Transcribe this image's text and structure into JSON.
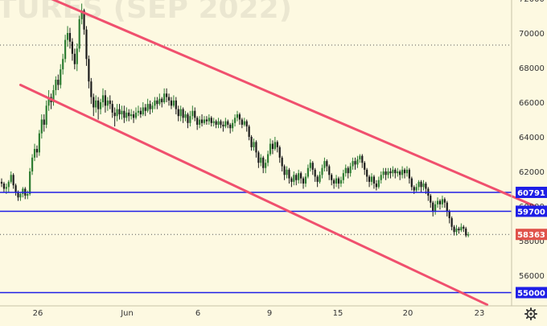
{
  "chart_data": {
    "type": "candlestick",
    "watermark": "TURES (SEP 2022)",
    "colors": {
      "background": "#FDF9E1",
      "up": "#2E7D32",
      "down": "#1B1B1B",
      "channel": "#F0506E",
      "level": "#1E1EE6",
      "last_price_badge": "#E0524A",
      "dotted_reference": "#555555",
      "axis_text": "#333333"
    },
    "y_axis": {
      "ticks": [
        "72000",
        "70000",
        "68000",
        "66000",
        "64000",
        "62000",
        "60000",
        "58000",
        "56000"
      ],
      "range": [
        54500,
        72200
      ]
    },
    "x_axis": {
      "ticks": [
        "26",
        "Jun",
        "6",
        "9",
        "15",
        "20",
        "23"
      ]
    },
    "horizontal_levels": [
      {
        "label": "60791",
        "value": 60791,
        "style": "solid"
      },
      {
        "label": "59700",
        "value": 59700,
        "style": "solid"
      },
      {
        "label": "55000",
        "value": 55000,
        "style": "solid"
      }
    ],
    "dotted_reference_line": {
      "value": 69300
    },
    "last_price": {
      "label": "58363",
      "value": 58363
    },
    "channel_lines": [
      {
        "from": {
          "bar": 19,
          "price": 72100
        },
        "to": {
          "bar": 233,
          "price": 59600
        }
      },
      {
        "from": {
          "bar": 8,
          "price": 67000
        },
        "to": {
          "bar": 206,
          "price": 54300
        }
      }
    ],
    "candles": [
      [
        61400,
        61300,
        61600,
        61100
      ],
      [
        61300,
        61000,
        61400,
        60800
      ],
      [
        61000,
        61100,
        61300,
        60700
      ],
      [
        61100,
        61400,
        61500,
        60800
      ],
      [
        61400,
        61800,
        62000,
        61300
      ],
      [
        61800,
        61200,
        61900,
        61000
      ],
      [
        61200,
        60800,
        61300,
        60600
      ],
      [
        60800,
        60500,
        60900,
        60300
      ],
      [
        60500,
        60700,
        60800,
        60300
      ],
      [
        60700,
        61000,
        61100,
        60500
      ],
      [
        61000,
        60600,
        61100,
        60400
      ],
      [
        60600,
        60700,
        60900,
        60400
      ],
      [
        60700,
        62000,
        62200,
        60600
      ],
      [
        62000,
        62800,
        63000,
        61800
      ],
      [
        62800,
        63300,
        63600,
        62600
      ],
      [
        63300,
        63100,
        63500,
        62800
      ],
      [
        63100,
        64200,
        64400,
        62900
      ],
      [
        64200,
        65000,
        65300,
        63900
      ],
      [
        65000,
        64700,
        65300,
        64300
      ],
      [
        64700,
        65800,
        66100,
        64500
      ],
      [
        65800,
        66300,
        66700,
        65500
      ],
      [
        66300,
        66000,
        66500,
        65600
      ],
      [
        66000,
        66700,
        67000,
        65800
      ],
      [
        66700,
        67300,
        67500,
        66400
      ],
      [
        67300,
        67000,
        67600,
        66700
      ],
      [
        67000,
        67900,
        68200,
        66800
      ],
      [
        67900,
        68500,
        68800,
        67600
      ],
      [
        68500,
        69600,
        69900,
        68300
      ],
      [
        69600,
        70000,
        70400,
        69200
      ],
      [
        70000,
        69500,
        70300,
        69100
      ],
      [
        69500,
        68800,
        69700,
        68400
      ],
      [
        68800,
        68200,
        69100,
        67900
      ],
      [
        68200,
        69100,
        69400,
        67800
      ],
      [
        69100,
        70800,
        71000,
        68900
      ],
      [
        70800,
        71300,
        71700,
        70500
      ],
      [
        71300,
        70200,
        71400,
        69900
      ],
      [
        70200,
        68500,
        70400,
        68100
      ],
      [
        68500,
        67200,
        68700,
        66800
      ],
      [
        67200,
        66300,
        67400,
        65900
      ],
      [
        66300,
        65700,
        66500,
        65200
      ],
      [
        65700,
        66100,
        66400,
        65400
      ],
      [
        66100,
        65600,
        66300,
        65000
      ],
      [
        65600,
        66000,
        66200,
        65300
      ],
      [
        66000,
        66400,
        66800,
        65700
      ],
      [
        66400,
        65800,
        66700,
        65400
      ],
      [
        65800,
        66100,
        66300,
        65500
      ],
      [
        66100,
        65900,
        66400,
        65600
      ],
      [
        65900,
        65400,
        66100,
        65100
      ],
      [
        65400,
        65200,
        65700,
        64600
      ],
      [
        65200,
        65600,
        65900,
        64900
      ],
      [
        65600,
        65300,
        65900,
        65000
      ],
      [
        65300,
        65500,
        65800,
        65000
      ],
      [
        65500,
        65100,
        65800,
        64800
      ],
      [
        65100,
        65400,
        65700,
        64900
      ],
      [
        65400,
        65200,
        65600,
        64900
      ],
      [
        65200,
        65300,
        65600,
        65000
      ],
      [
        65300,
        65100,
        65500,
        64800
      ],
      [
        65100,
        65400,
        65700,
        65000
      ],
      [
        65400,
        65500,
        65800,
        65200
      ],
      [
        65500,
        65300,
        65700,
        65100
      ],
      [
        65300,
        65700,
        66000,
        65200
      ],
      [
        65700,
        65500,
        65900,
        65200
      ],
      [
        65500,
        65900,
        66200,
        65400
      ],
      [
        65900,
        65600,
        66100,
        65300
      ],
      [
        65600,
        65800,
        66000,
        65400
      ],
      [
        65800,
        66100,
        66300,
        65600
      ],
      [
        66100,
        65900,
        66300,
        65600
      ],
      [
        65900,
        66200,
        66500,
        65800
      ],
      [
        66200,
        66000,
        66300,
        65700
      ],
      [
        66000,
        66500,
        66800,
        65900
      ],
      [
        66500,
        66300,
        66800,
        66000
      ],
      [
        66300,
        66100,
        66500,
        65800
      ],
      [
        66100,
        65800,
        66300,
        65600
      ],
      [
        65800,
        66100,
        66400,
        65700
      ],
      [
        66100,
        65600,
        66300,
        65300
      ],
      [
        65600,
        65200,
        65800,
        64900
      ],
      [
        65200,
        65600,
        65800,
        64900
      ],
      [
        65600,
        65100,
        65700,
        64800
      ],
      [
        65100,
        65300,
        65500,
        64900
      ],
      [
        65300,
        64800,
        65400,
        64500
      ],
      [
        64800,
        65200,
        65500,
        64600
      ],
      [
        65200,
        65500,
        65800,
        65000
      ],
      [
        65500,
        65100,
        65700,
        64900
      ],
      [
        65100,
        64700,
        65200,
        64400
      ],
      [
        64700,
        65000,
        65200,
        64500
      ],
      [
        65000,
        64800,
        65300,
        64600
      ],
      [
        64800,
        65000,
        65200,
        64700
      ],
      [
        65000,
        64900,
        65200,
        64700
      ],
      [
        64900,
        65100,
        65300,
        64700
      ],
      [
        65100,
        64800,
        65200,
        64600
      ],
      [
        64800,
        64900,
        65100,
        64600
      ],
      [
        64900,
        64700,
        65000,
        64500
      ],
      [
        64700,
        64900,
        65100,
        64500
      ],
      [
        64900,
        64700,
        65000,
        64500
      ],
      [
        64700,
        64600,
        64900,
        64300
      ],
      [
        64600,
        64900,
        65100,
        64500
      ],
      [
        64900,
        64700,
        65000,
        64500
      ],
      [
        64700,
        64500,
        64800,
        64200
      ],
      [
        64500,
        64800,
        65000,
        64300
      ],
      [
        64800,
        65100,
        65300,
        64600
      ],
      [
        65100,
        65300,
        65500,
        64900
      ],
      [
        65300,
        65000,
        65400,
        64700
      ],
      [
        65000,
        64700,
        65100,
        64500
      ],
      [
        64700,
        64900,
        65100,
        64600
      ],
      [
        64900,
        64600,
        65000,
        64300
      ],
      [
        64600,
        64000,
        64700,
        63800
      ],
      [
        64000,
        63400,
        64100,
        63200
      ],
      [
        63400,
        63700,
        63900,
        63200
      ],
      [
        63700,
        63100,
        63800,
        62800
      ],
      [
        63100,
        62500,
        63200,
        62200
      ],
      [
        62500,
        62800,
        63000,
        62300
      ],
      [
        62800,
        62200,
        62900,
        61900
      ],
      [
        62200,
        62500,
        62700,
        61900
      ],
      [
        62500,
        63000,
        63200,
        62300
      ],
      [
        63000,
        63600,
        63900,
        62900
      ],
      [
        63600,
        63300,
        63800,
        63000
      ],
      [
        63300,
        63700,
        64000,
        63200
      ],
      [
        63700,
        63400,
        63800,
        63100
      ],
      [
        63400,
        62800,
        63500,
        62500
      ],
      [
        62800,
        62300,
        62900,
        62000
      ],
      [
        62300,
        61800,
        62400,
        61500
      ],
      [
        61800,
        62100,
        62300,
        61600
      ],
      [
        62100,
        61600,
        62200,
        61300
      ],
      [
        61600,
        61400,
        61700,
        61100
      ],
      [
        61400,
        61800,
        62000,
        61200
      ],
      [
        61800,
        61500,
        61900,
        61200
      ],
      [
        61500,
        61900,
        62100,
        61300
      ],
      [
        61900,
        61600,
        62000,
        61300
      ],
      [
        61600,
        61300,
        61700,
        61000
      ],
      [
        61300,
        61700,
        61900,
        61100
      ],
      [
        61700,
        62200,
        62400,
        61600
      ],
      [
        62200,
        62500,
        62700,
        62000
      ],
      [
        62500,
        62100,
        62600,
        61800
      ],
      [
        62100,
        61700,
        62200,
        61400
      ],
      [
        61700,
        61400,
        61800,
        61100
      ],
      [
        61400,
        61800,
        62000,
        61300
      ],
      [
        61800,
        62200,
        62400,
        61600
      ],
      [
        62200,
        62600,
        62800,
        62000
      ],
      [
        62600,
        62300,
        62700,
        62000
      ],
      [
        62300,
        61800,
        62400,
        61500
      ],
      [
        61800,
        61500,
        61900,
        61200
      ],
      [
        61500,
        61300,
        61600,
        61000
      ],
      [
        61300,
        61600,
        61800,
        61100
      ],
      [
        61600,
        61300,
        61700,
        61000
      ],
      [
        61300,
        61500,
        61700,
        61100
      ],
      [
        61500,
        61900,
        62100,
        61300
      ],
      [
        61900,
        62200,
        62400,
        61700
      ],
      [
        62200,
        61900,
        62300,
        61600
      ],
      [
        61900,
        62300,
        62500,
        61700
      ],
      [
        62300,
        62600,
        62800,
        62100
      ],
      [
        62600,
        62400,
        62800,
        62100
      ],
      [
        62400,
        62700,
        62900,
        62200
      ],
      [
        62700,
        62900,
        63000,
        62500
      ],
      [
        62900,
        62500,
        63000,
        62200
      ],
      [
        62500,
        62100,
        62600,
        61800
      ],
      [
        62100,
        61700,
        62200,
        61400
      ],
      [
        61700,
        61400,
        61800,
        61100
      ],
      [
        61400,
        61700,
        61900,
        61200
      ],
      [
        61700,
        61300,
        61800,
        61000
      ],
      [
        61300,
        61100,
        61500,
        60900
      ],
      [
        61100,
        61500,
        61700,
        61000
      ],
      [
        61500,
        61800,
        62000,
        61300
      ],
      [
        61800,
        62000,
        62200,
        61600
      ],
      [
        62000,
        61800,
        62200,
        61500
      ],
      [
        61800,
        62000,
        62200,
        61600
      ],
      [
        62000,
        61900,
        62200,
        61600
      ],
      [
        61900,
        62100,
        62300,
        61700
      ],
      [
        62100,
        61900,
        62200,
        61600
      ],
      [
        61900,
        62000,
        62200,
        61700
      ],
      [
        62000,
        61800,
        62100,
        61500
      ],
      [
        61800,
        62100,
        62300,
        61600
      ],
      [
        62100,
        61900,
        62200,
        61600
      ],
      [
        61900,
        62100,
        62300,
        61700
      ],
      [
        62100,
        61600,
        62200,
        61300
      ],
      [
        61600,
        61100,
        61700,
        60900
      ],
      [
        61100,
        60900,
        61200,
        60700
      ],
      [
        60900,
        61100,
        61300,
        60800
      ],
      [
        61100,
        61400,
        61500,
        60900
      ],
      [
        61400,
        61100,
        61500,
        60800
      ],
      [
        61100,
        61300,
        61500,
        60900
      ],
      [
        61300,
        61000,
        61400,
        60700
      ],
      [
        61000,
        60600,
        61100,
        60300
      ],
      [
        60600,
        60200,
        60700,
        59900
      ],
      [
        60200,
        59700,
        60300,
        59400
      ],
      [
        59700,
        60100,
        60300,
        59500
      ],
      [
        60100,
        60300,
        60500,
        59900
      ],
      [
        60300,
        60100,
        60400,
        59800
      ],
      [
        60100,
        60400,
        60600,
        59900
      ],
      [
        60400,
        60200,
        60500,
        59900
      ],
      [
        60200,
        59700,
        60300,
        59400
      ],
      [
        59700,
        59300,
        59800,
        59000
      ],
      [
        59300,
        58800,
        59400,
        58600
      ],
      [
        58800,
        58500,
        58900,
        58300
      ],
      [
        58500,
        58700,
        58900,
        58300
      ],
      [
        58700,
        58600,
        58800,
        58400
      ],
      [
        58600,
        58800,
        59000,
        58500
      ],
      [
        58800,
        58700,
        58900,
        58500
      ],
      [
        58700,
        58300,
        58800,
        58200
      ],
      [
        58300,
        58363,
        58500,
        58200
      ]
    ]
  }
}
